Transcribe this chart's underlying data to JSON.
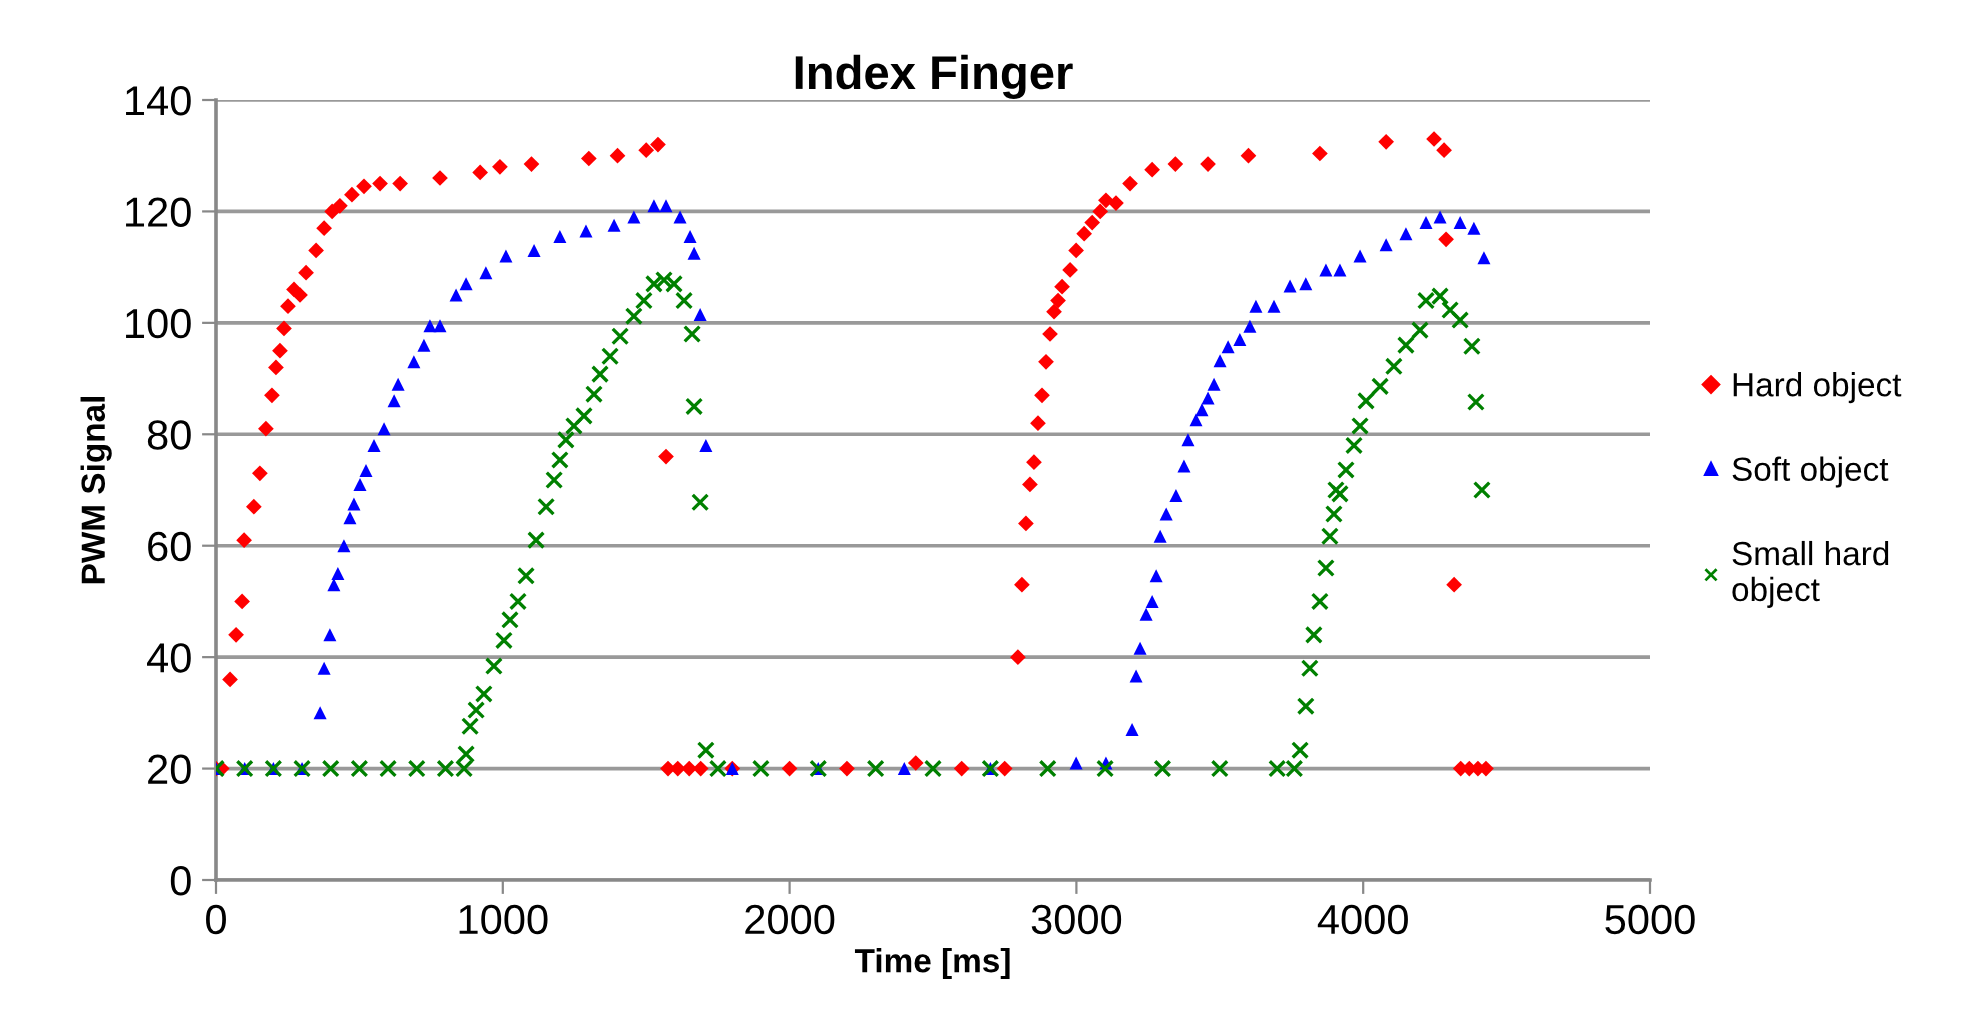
{
  "chart_data": {
    "type": "scatter",
    "title": "Index Finger",
    "xlabel": "Time [ms]",
    "ylabel": "PWM Signal",
    "xlim": [
      0,
      5000
    ],
    "xticks": [
      0,
      1000,
      2000,
      3000,
      4000,
      5000
    ],
    "ylim": [
      0,
      140
    ],
    "yticks": [
      0,
      20,
      40,
      60,
      80,
      100,
      120,
      140
    ],
    "grid": "y",
    "legend": "right",
    "series": [
      {
        "name": "Hard object",
        "color": "#ff0000",
        "marker": "diamond",
        "x": [
          0,
          20,
          49,
          70,
          91,
          98,
          132,
          153,
          174,
          195,
          209,
          223,
          237,
          251,
          272,
          293,
          314,
          349,
          377,
          405,
          432,
          474,
          516,
          572,
          642,
          781,
          921,
          990,
          1100,
          1300,
          1400,
          1500,
          1541,
          1569,
          1576,
          1610,
          1650,
          1690,
          1800,
          2000,
          2200,
          2440,
          2600,
          2750,
          2796,
          2810,
          2824,
          2838,
          2852,
          2866,
          2880,
          2894,
          2908,
          2922,
          2936,
          2950,
          2978,
          2999,
          3027,
          3055,
          3083,
          3103,
          3138,
          3187,
          3264,
          3345,
          3459,
          3600,
          3849,
          4080,
          4247,
          4282,
          4289,
          4317,
          4340,
          4370,
          4400,
          4428
        ],
        "values": [
          20,
          20,
          36,
          44,
          50,
          61,
          67,
          73,
          81,
          87,
          92,
          95,
          99,
          103,
          106,
          105,
          109,
          113,
          117,
          120,
          121,
          123,
          124.5,
          125,
          125,
          126,
          127,
          128,
          128.5,
          129.5,
          130,
          131,
          132,
          76,
          20,
          20,
          20,
          20,
          20,
          20,
          20,
          21,
          20,
          20,
          40,
          53,
          64,
          71,
          75,
          82,
          87,
          93,
          98,
          102,
          104,
          106.5,
          109.5,
          113,
          116,
          118,
          120,
          122,
          121.5,
          125,
          127.5,
          128.5,
          128.5,
          130,
          130.4,
          132.5,
          133,
          131,
          115,
          53,
          20,
          20,
          20,
          20
        ]
      },
      {
        "name": "Soft object",
        "color": "#0000ff",
        "marker": "triangle",
        "x": [
          0,
          100,
          200,
          300,
          363,
          377,
          397,
          411,
          425,
          446,
          467,
          481,
          502,
          523,
          551,
          586,
          621,
          635,
          690,
          725,
          746,
          781,
          837,
          872,
          941,
          1011,
          1109,
          1199,
          1290,
          1388,
          1457,
          1527,
          1569,
          1618,
          1653,
          1667,
          1688,
          1708,
          1800,
          2100,
          2400,
          2700,
          2999,
          3103,
          3194,
          3208,
          3222,
          3243,
          3264,
          3278,
          3292,
          3313,
          3347,
          3375,
          3389,
          3417,
          3438,
          3459,
          3480,
          3501,
          3529,
          3570,
          3605,
          3626,
          3689,
          3745,
          3800,
          3870,
          3919,
          3989,
          4080,
          4149,
          4219,
          4268,
          4338,
          4386,
          4421
        ],
        "values": [
          20,
          20,
          20,
          20,
          30,
          38,
          44,
          53,
          55,
          60,
          65,
          67.5,
          71,
          73.5,
          78,
          81,
          86,
          89,
          93,
          96,
          99.5,
          99.5,
          105,
          107,
          109,
          112,
          113,
          115.5,
          116.5,
          117.5,
          119,
          121,
          121,
          119,
          115.5,
          112.5,
          101.5,
          78,
          20,
          20,
          20,
          20,
          21,
          21,
          27,
          36.6,
          41.6,
          47.7,
          50,
          54.6,
          61.7,
          65.7,
          69,
          74.3,
          79,
          82.6,
          84.4,
          86.5,
          89,
          93.2,
          95.7,
          97,
          99.4,
          103,
          103,
          106.6,
          107,
          109.5,
          109.5,
          112,
          114,
          116,
          118,
          119,
          118,
          117,
          111.7
        ]
      },
      {
        "name": "Small hard object",
        "color": "#008000",
        "marker": "cross",
        "x": [
          0,
          100,
          200,
          300,
          400,
          500,
          600,
          700,
          800,
          865,
          872,
          886,
          907,
          934,
          969,
          1004,
          1025,
          1053,
          1081,
          1116,
          1151,
          1179,
          1199,
          1220,
          1248,
          1283,
          1318,
          1339,
          1374,
          1409,
          1457,
          1492,
          1527,
          1562,
          1597,
          1632,
          1660,
          1667,
          1688,
          1708,
          1750,
          1900,
          2100,
          2300,
          2500,
          2700,
          2900,
          3100,
          3300,
          3500,
          3700,
          3760,
          3780,
          3800,
          3814,
          3828,
          3849,
          3870,
          3884,
          3898,
          3905,
          3919,
          3940,
          3968,
          3989,
          4010,
          4059,
          4107,
          4149,
          4198,
          4219,
          4268,
          4303,
          4338,
          4379,
          4393,
          4414
        ],
        "values": [
          20,
          20,
          20,
          20,
          20,
          20,
          20,
          20,
          20,
          20,
          22.6,
          27.6,
          30.5,
          33.4,
          38.4,
          43,
          46.7,
          50,
          54.6,
          61,
          67,
          71.8,
          75.4,
          79,
          81.5,
          83.3,
          87.2,
          90.8,
          94,
          97.6,
          101.2,
          104,
          107,
          107.7,
          107,
          104,
          98,
          85,
          67.8,
          23.3,
          20,
          20,
          20,
          20,
          20,
          20,
          20,
          20,
          20,
          20,
          20,
          20,
          23.3,
          31.2,
          38,
          44,
          50,
          56,
          61.7,
          65.7,
          70,
          69.3,
          73.6,
          78,
          81.5,
          86,
          88.6,
          92.2,
          96,
          98.7,
          104,
          104.8,
          102.3,
          100.5,
          95.8,
          85.8,
          70
        ]
      }
    ]
  }
}
